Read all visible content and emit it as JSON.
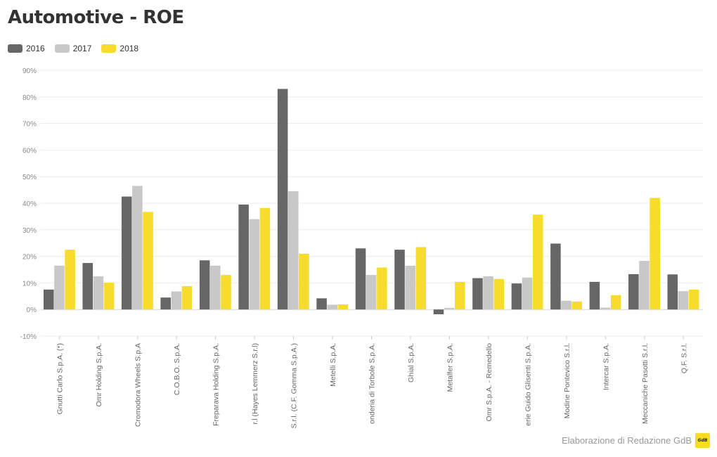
{
  "title": "Automotive - ROE",
  "footer": "Elaborazione di Redazione GdB",
  "logo_text": "GdB",
  "colors": {
    "2016": "#666666",
    "2017": "#c8c8c8",
    "2018": "#f7dc2e"
  },
  "chart_data": {
    "type": "bar",
    "title": "Automotive - ROE",
    "xlabel": "",
    "ylabel": "",
    "ylim": [
      -10,
      90
    ],
    "yticks": [
      -10,
      0,
      10,
      20,
      30,
      40,
      50,
      60,
      70,
      80,
      90
    ],
    "ytick_labels": [
      "-10%",
      "0%",
      "10%",
      "20%",
      "30%",
      "40%",
      "50%",
      "60%",
      "70%",
      "80%",
      "90%"
    ],
    "grid": true,
    "legend_position": "top-left",
    "categories": [
      "Gnutti Carlo S.p.A. (*)",
      "Omr Holding S.p.A.",
      "Cromodora Wheels S.p.A",
      "C.O.B.O. S.p.A.",
      "Freparava Holding S.p.A.",
      "r.l (Hayes Lemmerz S.r.l)",
      "S.r.l. (C.F. Gomma S.p.A.)",
      "Metelli S.p.A.",
      "onderia di Torbole S.p.A.",
      "Ghial S.p.A.",
      "Metalfer S.p.A.",
      "Omr S.p.A. - Remedello",
      "erie Guido Glisenti S.p.A.",
      "Modine Pontevico S.r.l.",
      "Intercar S.p.A.",
      "Meccaniche Pasotti S.r.l.",
      "Q.F. S.r.l."
    ],
    "series": [
      {
        "name": "2016",
        "values": [
          7.5,
          17.5,
          42.5,
          4.5,
          18.5,
          39.5,
          83,
          4.2,
          23,
          22.5,
          -1.8,
          11.8,
          9.8,
          24.8,
          10.4,
          13.3,
          13.2
        ]
      },
      {
        "name": "2017",
        "values": [
          16.5,
          12.5,
          46.5,
          6.8,
          16.5,
          34,
          44.5,
          1.8,
          13,
          16.5,
          0.6,
          12.5,
          12,
          3.3,
          0.7,
          18.3,
          6.9
        ]
      },
      {
        "name": "2018",
        "values": [
          22.5,
          10.1,
          36.7,
          8.8,
          13,
          38.2,
          21,
          1.9,
          15.8,
          23.5,
          10.4,
          11.5,
          35.7,
          3,
          5.4,
          42,
          7.5
        ]
      }
    ]
  }
}
